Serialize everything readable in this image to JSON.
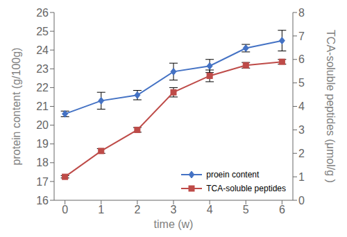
{
  "chart_data": {
    "type": "line",
    "xlabel": "time (w)",
    "ylabel": "protein content (g/100g)",
    "y2label": "TCA-soluble peptides (μmol/g )",
    "x": [
      0,
      1,
      2,
      3,
      4,
      5,
      6
    ],
    "xlim": [
      -0.3,
      6.3
    ],
    "xticks": [
      0,
      1,
      2,
      3,
      4,
      5,
      6
    ],
    "ylim": [
      16,
      26
    ],
    "yticks": [
      16,
      17,
      18,
      19,
      20,
      21,
      22,
      23,
      24,
      25,
      26
    ],
    "y2lim": [
      0,
      8
    ],
    "y2ticks": [
      0,
      1,
      2,
      3,
      4,
      5,
      6,
      7,
      8
    ],
    "grid": false,
    "legend": "lower right",
    "series": [
      {
        "name": "proein content",
        "color": "#4472C4",
        "marker": "diamond",
        "values": [
          20.6,
          21.3,
          21.6,
          22.85,
          23.15,
          24.1,
          24.5
        ],
        "errors": [
          0.15,
          0.45,
          0.25,
          0.45,
          0.35,
          0.2,
          0.55
        ]
      },
      {
        "name": "TCA-soluble peptides",
        "color": "#BE4B48",
        "marker": "square",
        "axis": "y2",
        "values": [
          1.0,
          2.1,
          3.0,
          4.6,
          5.3,
          5.75,
          5.9
        ],
        "errors": [
          0.05,
          0.1,
          0.1,
          0.2,
          0.25,
          0.12,
          0.1
        ]
      }
    ]
  }
}
